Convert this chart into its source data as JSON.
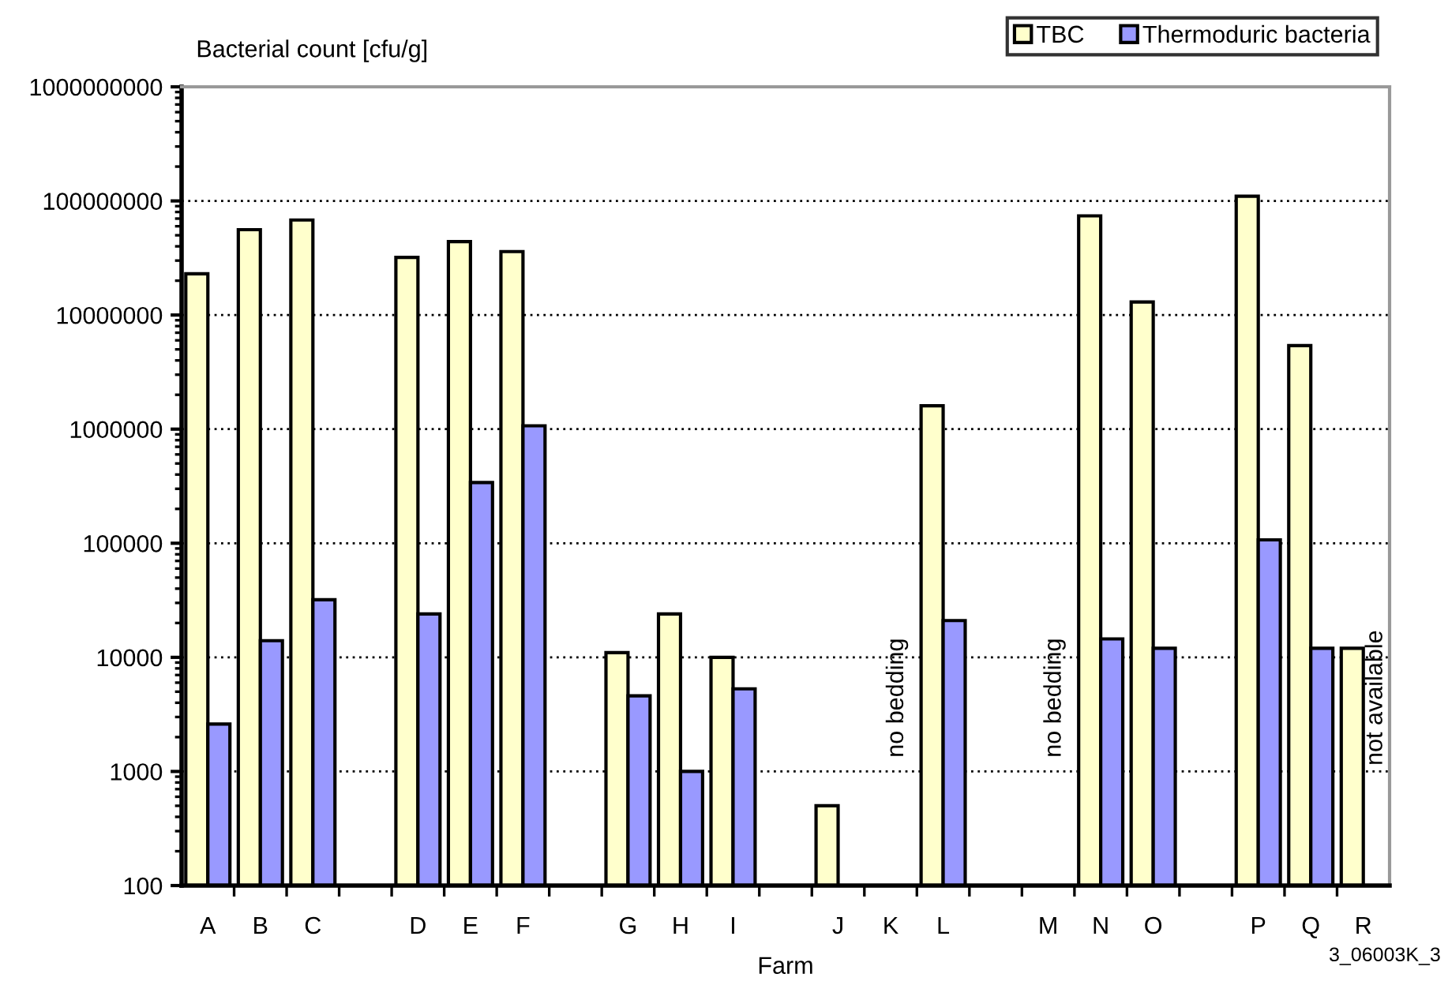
{
  "chart_data": {
    "type": "bar",
    "ylabel": "Bacterial count [cfu/g]",
    "xlabel": "Farm",
    "categories": [
      "A",
      "B",
      "C",
      null,
      "D",
      "E",
      "F",
      null,
      "G",
      "H",
      "I",
      null,
      "J",
      "K",
      "L",
      null,
      "M",
      "N",
      "O",
      null,
      "P",
      "Q",
      "R"
    ],
    "series": [
      {
        "name": "TBC",
        "color": "#ffffcc",
        "values": [
          23000000,
          56000000,
          68000000,
          null,
          32000000,
          44000000,
          36000000,
          null,
          11000,
          24000,
          10000,
          null,
          500,
          null,
          1600000,
          null,
          null,
          74000000,
          13000000,
          null,
          110000000,
          5400000,
          12000
        ]
      },
      {
        "name": "Thermoduric bacteria",
        "color": "#9999ff",
        "values": [
          2600,
          14000,
          32000,
          null,
          24000,
          340000,
          1070000,
          null,
          4600,
          1000,
          5300,
          null,
          null,
          null,
          21000,
          null,
          null,
          14500,
          12000,
          null,
          107000,
          12000,
          null
        ]
      }
    ],
    "log": "y",
    "ylim": [
      100,
      1000000000
    ],
    "yticks": [
      100,
      1000,
      10000,
      100000,
      1000000,
      10000000,
      100000000,
      1000000000
    ],
    "grid": "y",
    "legend": "top right",
    "annotations": [
      "no bedding",
      "no bedding",
      "not available",
      "3_06003K_3"
    ]
  }
}
